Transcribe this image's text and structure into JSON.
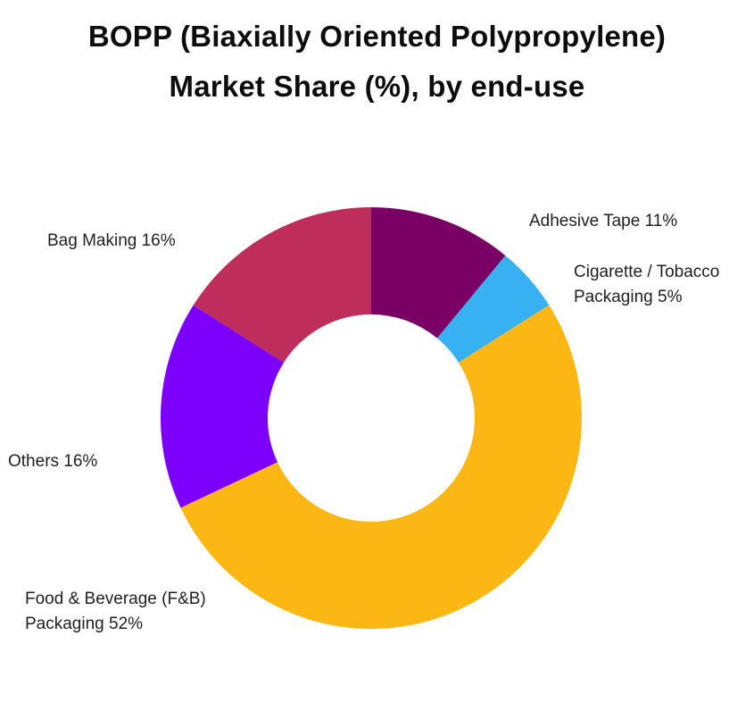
{
  "page": {
    "background_color": "#ffffff",
    "text_color": "#1f1f1f"
  },
  "title": {
    "line1": "BOPP (Biaxially Oriented Polypropylene)",
    "line2": "Market Share (%), by end-use"
  },
  "chart_data": {
    "type": "pie",
    "subtype": "donut",
    "title": "BOPP (Biaxially Oriented Polypropylene) Market Share (%), by end-use",
    "unit": "%",
    "start_angle": "12-oclock",
    "direction": "clockwise",
    "legend_position": "none",
    "categories": [
      "Adhesive Tape",
      "Cigarette / Tobacco Packaging",
      "Food & Beverage (F&B) Packaging",
      "Others",
      "Bag Making"
    ],
    "values": [
      11,
      5,
      52,
      16,
      16
    ],
    "slices": [
      {
        "id": "adhesive-tape",
        "category": "Adhesive Tape",
        "value": 11,
        "color": "#7A0065",
        "label_text": "Adhesive Tape 11%"
      },
      {
        "id": "cigarette-tobacco-packaging",
        "category": "Cigarette / Tobacco Packaging",
        "value": 5,
        "color": "#38B1F2",
        "label_text": "Cigarette / Tobacco\nPackaging 5%"
      },
      {
        "id": "food-beverage-packaging",
        "category": "Food & Beverage (F&B) Packaging",
        "value": 52,
        "color": "#FCB714",
        "label_text": "Food & Beverage (F&B)\nPackaging 52%"
      },
      {
        "id": "others",
        "category": "Others",
        "value": 16,
        "color": "#7C00FC",
        "label_text": "Others 16%"
      },
      {
        "id": "bag-making",
        "category": "Bag Making",
        "value": 16,
        "color": "#BE2D5B",
        "label_text": "Bag Making 16%"
      }
    ]
  }
}
